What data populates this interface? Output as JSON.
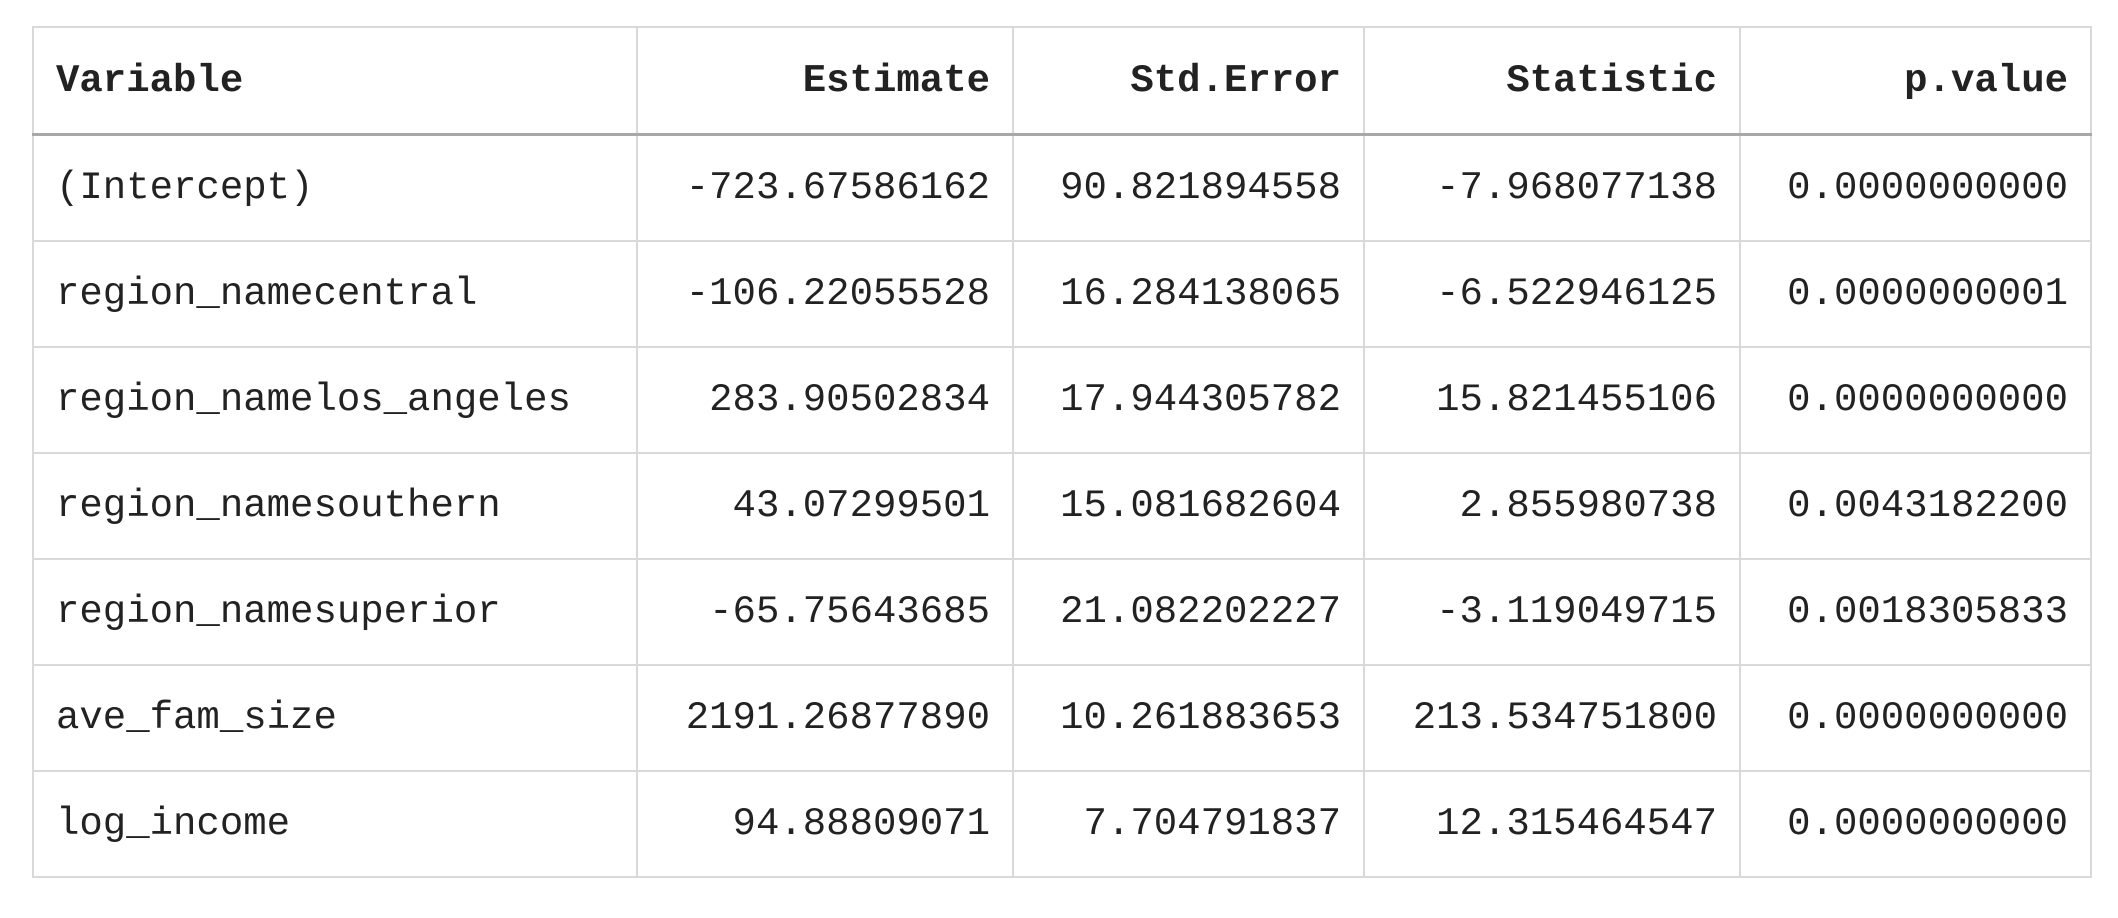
{
  "table": {
    "columns": [
      "Variable",
      "Estimate",
      "Std.Error",
      "Statistic",
      "p.value"
    ],
    "rows": [
      [
        "(Intercept)",
        "-723.67586162",
        "90.821894558",
        "-7.968077138",
        "0.0000000000"
      ],
      [
        "region_namecentral",
        "-106.22055528",
        "16.284138065",
        "-6.522946125",
        "0.0000000001"
      ],
      [
        "region_namelos_angeles",
        "283.90502834",
        "17.944305782",
        "15.821455106",
        "0.0000000000"
      ],
      [
        "region_namesouthern",
        "43.07299501",
        "15.081682604",
        "2.855980738",
        "0.0043182200"
      ],
      [
        "region_namesuperior",
        "-65.75643685",
        "21.082202227",
        "-3.119049715",
        "0.0018305833"
      ],
      [
        "ave_fam_size",
        "2191.26877890",
        "10.261883653",
        "213.534751800",
        "0.0000000000"
      ],
      [
        "log_income",
        "94.88809071",
        "7.704791837",
        "12.315464547",
        "0.0000000000"
      ]
    ]
  }
}
